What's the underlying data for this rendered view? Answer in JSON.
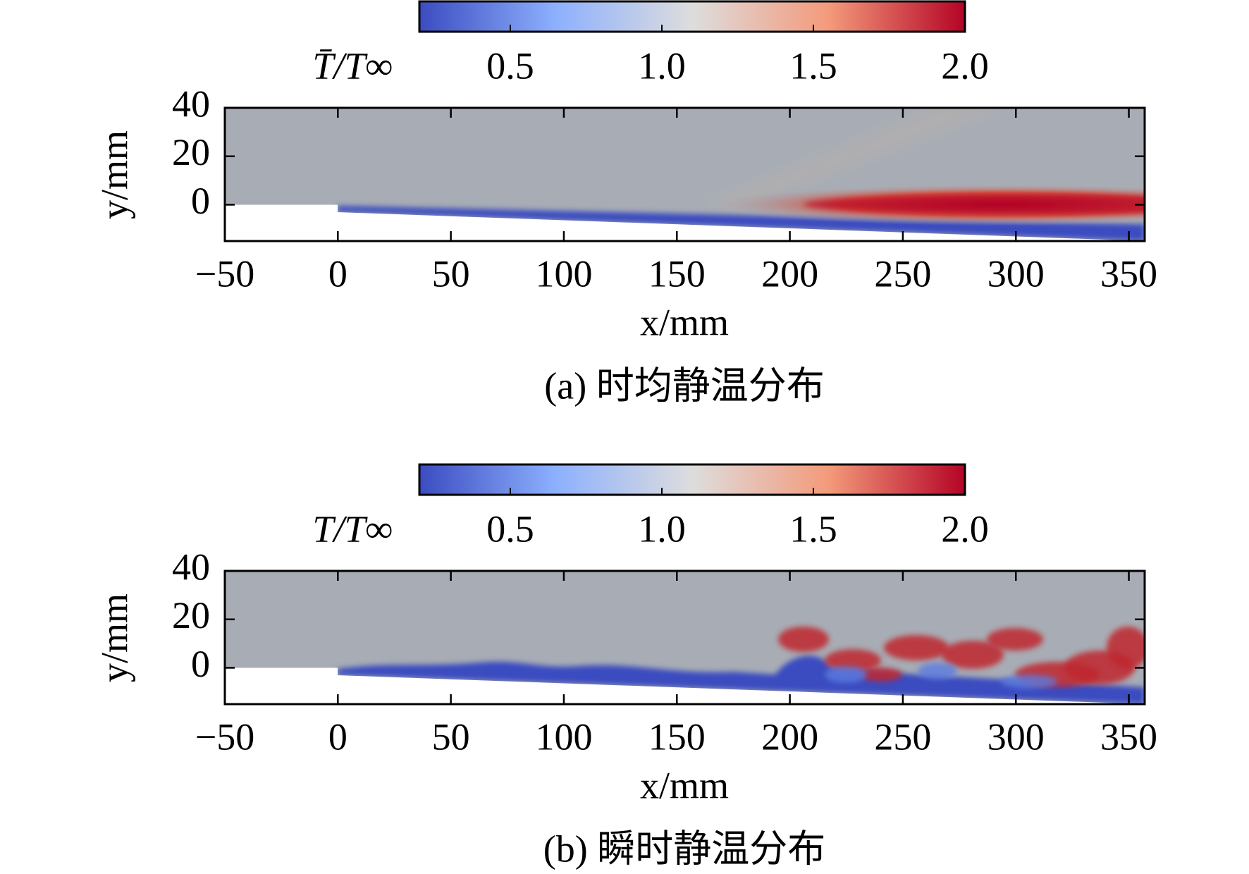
{
  "chart_data": [
    {
      "type": "heatmap",
      "caption": "(a) 时均静温分布",
      "xlabel": "x/mm",
      "ylabel": "y/mm",
      "colorbar_label": "T̄/T∞",
      "clim": [
        0.2,
        2.0
      ],
      "cticks": [
        0.5,
        {
          "value": 1.0,
          "label": "1.0"
        },
        1.5,
        {
          "value": 2.0,
          "label": "2.0"
        }
      ],
      "colormap_colors": [
        "#3b4cc0",
        "#8db0fe",
        "#dddddd",
        "#f49a7b",
        "#b40426"
      ],
      "xlim": [
        -50,
        357
      ],
      "xticks": [
        {
          "value": -50,
          "label": "−50"
        },
        0,
        50,
        100,
        150,
        200,
        250,
        300,
        350
      ],
      "ylim": [
        -15,
        40
      ],
      "yticks": [
        0,
        20,
        40
      ]
    },
    {
      "type": "heatmap",
      "caption": "(b) 瞬时静温分布",
      "xlabel": "x/mm",
      "ylabel": "y/mm",
      "colorbar_label": "T/T∞",
      "clim": [
        0.2,
        2.0
      ],
      "cticks": [
        0.5,
        {
          "value": 1.0,
          "label": "1.0"
        },
        1.5,
        {
          "value": 2.0,
          "label": "2.0"
        }
      ],
      "colormap_colors": [
        "#3b4cc0",
        "#8db0fe",
        "#dddddd",
        "#f49a7b",
        "#b40426"
      ],
      "xlim": [
        -50,
        357
      ],
      "xticks": [
        {
          "value": -50,
          "label": "−50"
        },
        0,
        50,
        100,
        150,
        200,
        250,
        300,
        350
      ],
      "ylim": [
        -15,
        40
      ],
      "yticks": [
        0,
        20,
        40
      ]
    }
  ]
}
